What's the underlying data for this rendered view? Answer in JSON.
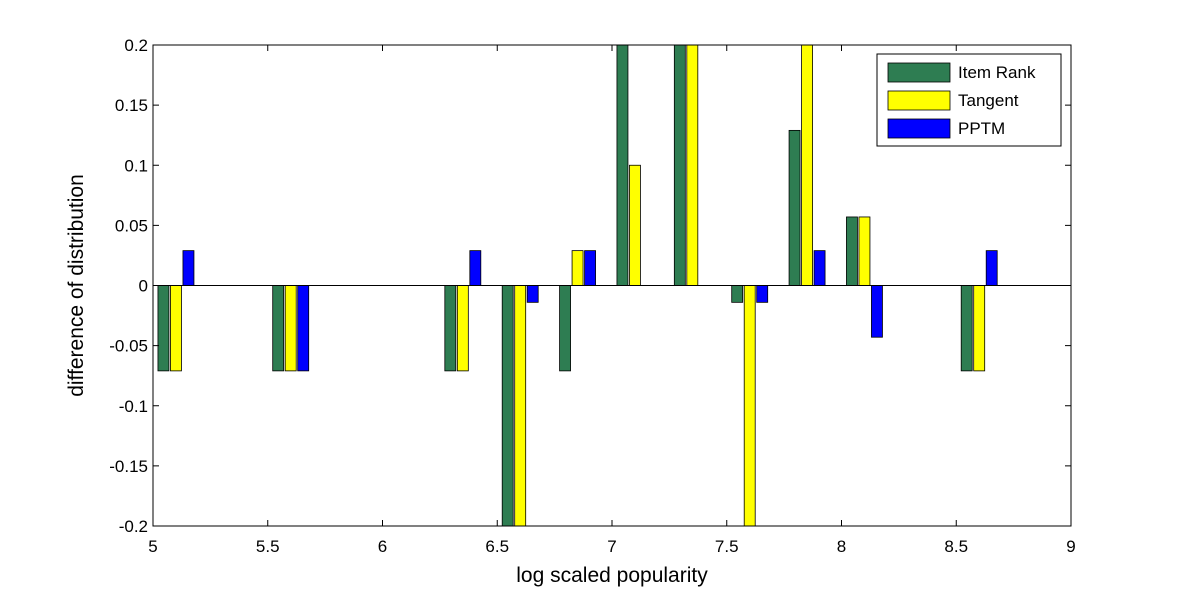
{
  "chart_data": {
    "type": "bar",
    "title": "",
    "xlabel": "log scaled popularity",
    "ylabel": "difference of distribution",
    "xlim": [
      5,
      9
    ],
    "ylim": [
      -0.2,
      0.2
    ],
    "x_ticks": [
      "5",
      "5.5",
      "6",
      "6.5",
      "7",
      "7.5",
      "8",
      "8.5",
      "9"
    ],
    "y_ticks": [
      "0.2",
      "0.15",
      "0.1",
      "0.05",
      "0",
      "-0.05",
      "-0.1",
      "-0.15",
      "-0.2"
    ],
    "x": [
      5.1,
      5.6,
      6.35,
      6.6,
      6.85,
      7.1,
      7.35,
      7.6,
      7.85,
      8.1,
      8.6
    ],
    "series": [
      {
        "name": "Item Rank",
        "color": "#2e7d52",
        "values": [
          -0.071,
          -0.071,
          -0.071,
          -0.2,
          -0.071,
          0.2,
          0.2,
          -0.014,
          0.129,
          0.057,
          -0.071
        ]
      },
      {
        "name": "Tangent",
        "color": "#ffff00",
        "values": [
          -0.071,
          -0.071,
          -0.071,
          -0.2,
          0.029,
          0.1,
          0.2,
          -0.2,
          0.2,
          0.057,
          -0.071
        ]
      },
      {
        "name": "PPTM",
        "color": "#0000ff",
        "values": [
          0.029,
          -0.071,
          0.029,
          -0.014,
          0.029,
          0,
          0,
          -0.014,
          0.029,
          -0.043,
          0.029
        ]
      }
    ],
    "grid": false,
    "legend_position": "top-right"
  }
}
